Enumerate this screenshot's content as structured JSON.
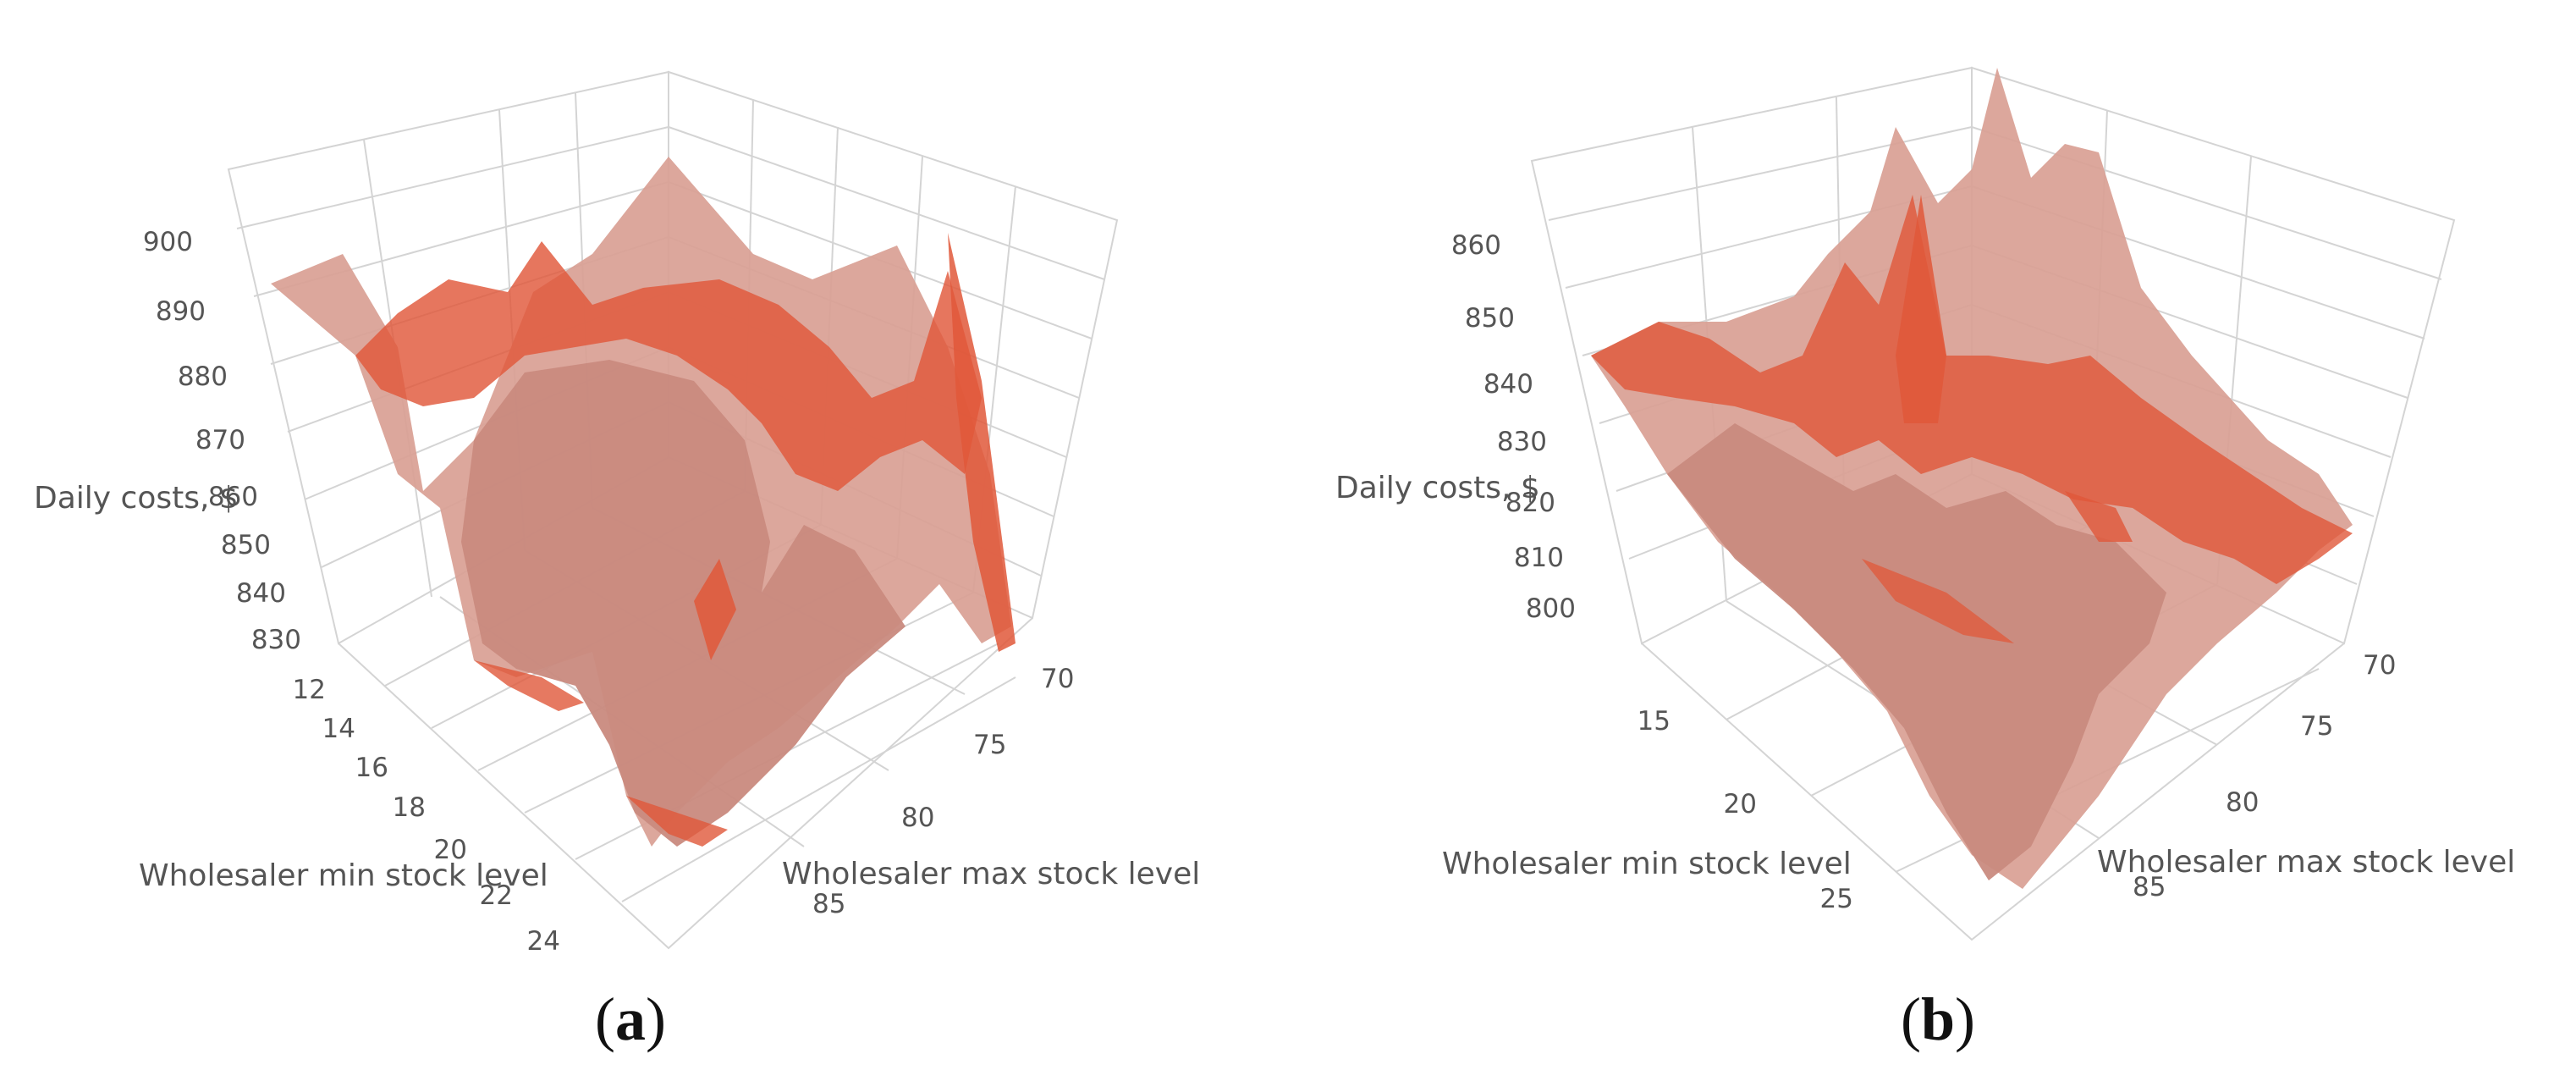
{
  "colors": {
    "surface": "#c98a7e",
    "surface_light": "#d9a094",
    "surface_dark": "#e0583a",
    "grid": "#d4d4d4",
    "text": "#555555"
  },
  "chart_data": [
    {
      "type": "surface",
      "panel_label": "a",
      "zlabel": "Daily costs, $",
      "xlabel": "Wholesaler min stock level",
      "ylabel": "Wholesaler max stock level",
      "x_ticks": [
        "12",
        "14",
        "16",
        "18",
        "20",
        "22",
        "24"
      ],
      "y_ticks": [
        "70",
        "75",
        "80",
        "85"
      ],
      "z_ticks": [
        "830",
        "840",
        "850",
        "860",
        "870",
        "880",
        "890",
        "900"
      ],
      "zlim": [
        826,
        904
      ],
      "grid": true
    },
    {
      "type": "surface",
      "panel_label": "b",
      "zlabel": "Daily costs, $",
      "xlabel": "Wholesaler min stock level",
      "ylabel": "Wholesaler max stock level",
      "x_ticks": [
        "15",
        "20",
        "25"
      ],
      "y_ticks": [
        "70",
        "75",
        "80",
        "85"
      ],
      "z_ticks": [
        "800",
        "810",
        "820",
        "830",
        "840",
        "850",
        "860"
      ],
      "zlim": [
        796,
        866
      ],
      "grid": true
    }
  ]
}
